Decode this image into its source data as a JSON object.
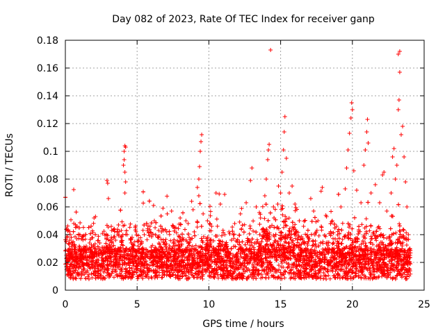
{
  "chart_data": {
    "type": "scatter",
    "title": "Day 082 of 2023, Rate Of TEC Index for receiver ganp",
    "xlabel": "GPS time / hours",
    "ylabel": "ROTI / TECUs",
    "xlim": [
      0,
      25
    ],
    "ylim": [
      0,
      0.18
    ],
    "x_ticks": [
      0,
      5,
      10,
      15,
      20,
      25
    ],
    "x_tick_labels": [
      "0",
      "5",
      "10",
      "15",
      "20",
      "25"
    ],
    "y_ticks": [
      0,
      0.02,
      0.04,
      0.06,
      0.08,
      0.1,
      0.12,
      0.14,
      0.16,
      0.18
    ],
    "y_tick_labels": [
      "0",
      "0.02",
      "0.04",
      "0.06",
      "0.08",
      "0.1",
      "0.12",
      "0.14",
      "0.16",
      "0.18"
    ],
    "grid": true,
    "marker": "+",
    "series": [
      {
        "name": "ROTI",
        "color": "#ff0000",
        "points": [
          [
            0.1,
            0.044
          ],
          [
            0.3,
            0.036
          ],
          [
            0.5,
            0.033
          ],
          [
            0.8,
            0.037
          ],
          [
            1.0,
            0.031
          ],
          [
            1.2,
            0.025
          ],
          [
            1.5,
            0.022
          ],
          [
            1.8,
            0.028
          ],
          [
            2.0,
            0.052
          ],
          [
            2.1,
            0.053
          ],
          [
            2.4,
            0.034
          ],
          [
            2.7,
            0.03
          ],
          [
            2.9,
            0.079
          ],
          [
            2.95,
            0.077
          ],
          [
            3.0,
            0.066
          ],
          [
            3.2,
            0.038
          ],
          [
            3.5,
            0.036
          ],
          [
            3.7,
            0.047
          ],
          [
            3.9,
            0.043
          ],
          [
            4.05,
            0.09
          ],
          [
            4.1,
            0.1
          ],
          [
            4.15,
            0.104
          ],
          [
            4.2,
            0.103
          ],
          [
            4.1,
            0.094
          ],
          [
            4.15,
            0.085
          ],
          [
            4.2,
            0.078
          ],
          [
            4.15,
            0.07
          ],
          [
            4.3,
            0.04
          ],
          [
            4.7,
            0.033
          ],
          [
            5.1,
            0.036
          ],
          [
            5.5,
            0.04
          ],
          [
            5.9,
            0.046
          ],
          [
            6.2,
            0.05
          ],
          [
            6.5,
            0.043
          ],
          [
            6.8,
            0.059
          ],
          [
            7.1,
            0.055
          ],
          [
            7.4,
            0.057
          ],
          [
            7.7,
            0.045
          ],
          [
            8.0,
            0.052
          ],
          [
            8.4,
            0.05
          ],
          [
            8.8,
            0.064
          ],
          [
            8.9,
            0.058
          ],
          [
            9.2,
            0.074
          ],
          [
            9.3,
            0.08
          ],
          [
            9.35,
            0.089
          ],
          [
            9.4,
            0.1
          ],
          [
            9.45,
            0.107
          ],
          [
            9.5,
            0.112
          ],
          [
            9.3,
            0.068
          ],
          [
            9.6,
            0.055
          ],
          [
            9.9,
            0.05
          ],
          [
            10.2,
            0.046
          ],
          [
            10.5,
            0.07
          ],
          [
            10.8,
            0.062
          ],
          [
            11.1,
            0.069
          ],
          [
            11.4,
            0.042
          ],
          [
            11.8,
            0.048
          ],
          [
            12.2,
            0.055
          ],
          [
            12.6,
            0.063
          ],
          [
            12.9,
            0.079
          ],
          [
            13.0,
            0.088
          ],
          [
            13.3,
            0.06
          ],
          [
            13.6,
            0.052
          ],
          [
            13.9,
            0.068
          ],
          [
            14.0,
            0.08
          ],
          [
            14.1,
            0.094
          ],
          [
            14.15,
            0.101
          ],
          [
            14.2,
            0.105
          ],
          [
            14.3,
            0.173
          ],
          [
            14.5,
            0.06
          ],
          [
            14.8,
            0.062
          ],
          [
            15.0,
            0.07
          ],
          [
            15.1,
            0.085
          ],
          [
            15.2,
            0.101
          ],
          [
            15.25,
            0.114
          ],
          [
            15.3,
            0.125
          ],
          [
            15.4,
            0.095
          ],
          [
            15.6,
            0.07
          ],
          [
            15.8,
            0.075
          ],
          [
            16.0,
            0.062
          ],
          [
            16.3,
            0.05
          ],
          [
            16.6,
            0.046
          ],
          [
            16.9,
            0.038
          ],
          [
            17.1,
            0.066
          ],
          [
            17.3,
            0.057
          ],
          [
            17.6,
            0.05
          ],
          [
            17.9,
            0.074
          ],
          [
            18.2,
            0.053
          ],
          [
            18.6,
            0.05
          ],
          [
            18.9,
            0.046
          ],
          [
            19.2,
            0.06
          ],
          [
            19.5,
            0.073
          ],
          [
            19.6,
            0.088
          ],
          [
            19.7,
            0.101
          ],
          [
            19.8,
            0.113
          ],
          [
            19.9,
            0.124
          ],
          [
            19.95,
            0.135
          ],
          [
            20.0,
            0.13
          ],
          [
            20.1,
            0.086
          ],
          [
            20.3,
            0.072
          ],
          [
            20.6,
            0.063
          ],
          [
            20.8,
            0.09
          ],
          [
            20.9,
            0.101
          ],
          [
            21.0,
            0.114
          ],
          [
            21.05,
            0.123
          ],
          [
            21.1,
            0.106
          ],
          [
            21.3,
            0.07
          ],
          [
            21.6,
            0.076
          ],
          [
            21.9,
            0.063
          ],
          [
            22.1,
            0.083
          ],
          [
            22.2,
            0.085
          ],
          [
            22.4,
            0.057
          ],
          [
            22.7,
            0.07
          ],
          [
            22.8,
            0.096
          ],
          [
            22.9,
            0.102
          ],
          [
            23.0,
            0.08
          ],
          [
            23.1,
            0.09
          ],
          [
            23.2,
            0.13
          ],
          [
            23.25,
            0.137
          ],
          [
            23.3,
            0.157
          ],
          [
            23.2,
            0.17
          ],
          [
            23.3,
            0.172
          ],
          [
            23.4,
            0.112
          ],
          [
            23.5,
            0.118
          ],
          [
            23.6,
            0.096
          ],
          [
            23.7,
            0.078
          ],
          [
            23.8,
            0.06
          ],
          [
            23.9,
            0.04
          ],
          [
            24.0,
            0.03
          ]
        ]
      }
    ]
  }
}
